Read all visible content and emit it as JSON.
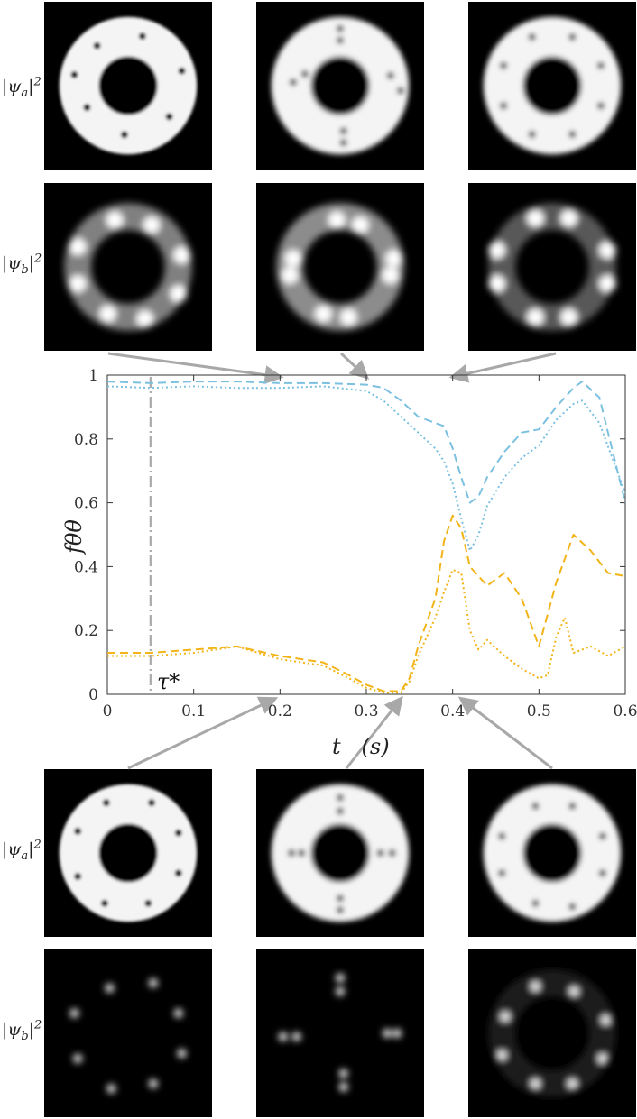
{
  "figure": {
    "row_labels": {
      "top_a": "|ψa|2",
      "top_b": "|ψb|2",
      "bottom_a": "|ψa|2",
      "bottom_b": "|ψb|2"
    },
    "panels": {
      "top_a": [
        {
          "vortices": [
            [
              0.315,
              0.262
            ],
            [
              0.585,
              0.205
            ],
            [
              0.82,
              0.412
            ],
            [
              0.745,
              0.685
            ],
            [
              0.478,
              0.792
            ],
            [
              0.255,
              0.63
            ],
            [
              0.18,
              0.435
            ]
          ],
          "blur": 0
        },
        {
          "vortices": [
            [
              0.5,
              0.16
            ],
            [
              0.5,
              0.23
            ],
            [
              0.29,
              0.43
            ],
            [
              0.22,
              0.48
            ],
            [
              0.52,
              0.77
            ],
            [
              0.52,
              0.84
            ],
            [
              0.8,
              0.44
            ],
            [
              0.86,
              0.53
            ]
          ],
          "blur": 1
        },
        {
          "vortices": [
            [
              0.38,
              0.21
            ],
            [
              0.62,
              0.21
            ],
            [
              0.79,
              0.38
            ],
            [
              0.79,
              0.62
            ],
            [
              0.62,
              0.79
            ],
            [
              0.38,
              0.79
            ],
            [
              0.21,
              0.62
            ],
            [
              0.21,
              0.38
            ]
          ],
          "blur": 1
        }
      ],
      "top_b": [
        {
          "blobs": [
            [
              0.42,
              0.22
            ],
            [
              0.64,
              0.25
            ],
            [
              0.82,
              0.43
            ],
            [
              0.8,
              0.66
            ],
            [
              0.6,
              0.81
            ],
            [
              0.38,
              0.78
            ],
            [
              0.2,
              0.6
            ],
            [
              0.2,
              0.38
            ]
          ],
          "ring": 0.5
        },
        {
          "blobs": [
            [
              0.48,
              0.22
            ],
            [
              0.62,
              0.25
            ],
            [
              0.82,
              0.45
            ],
            [
              0.8,
              0.55
            ],
            [
              0.55,
              0.8
            ],
            [
              0.4,
              0.78
            ],
            [
              0.2,
              0.55
            ],
            [
              0.22,
              0.45
            ]
          ],
          "ring": 0.55
        },
        {
          "blobs": [
            [
              0.4,
              0.21
            ],
            [
              0.6,
              0.21
            ],
            [
              0.83,
              0.4
            ],
            [
              0.83,
              0.6
            ],
            [
              0.6,
              0.8
            ],
            [
              0.4,
              0.8
            ],
            [
              0.17,
              0.6
            ],
            [
              0.17,
              0.4
            ]
          ],
          "ring": 0.35
        }
      ],
      "bottom_a": [
        {
          "vortices": [
            [
              0.37,
              0.2
            ],
            [
              0.64,
              0.2
            ],
            [
              0.8,
              0.38
            ],
            [
              0.8,
              0.62
            ],
            [
              0.62,
              0.8
            ],
            [
              0.36,
              0.8
            ],
            [
              0.2,
              0.64
            ],
            [
              0.2,
              0.37
            ]
          ],
          "blur": 0
        },
        {
          "vortices": [
            [
              0.5,
              0.17
            ],
            [
              0.5,
              0.25
            ],
            [
              0.81,
              0.5
            ],
            [
              0.74,
              0.5
            ],
            [
              0.5,
              0.77
            ],
            [
              0.5,
              0.84
            ],
            [
              0.21,
              0.5
            ],
            [
              0.27,
              0.5
            ]
          ],
          "blur": 1
        },
        {
          "vortices": [
            [
              0.4,
              0.22
            ],
            [
              0.62,
              0.22
            ],
            [
              0.8,
              0.4
            ],
            [
              0.8,
              0.62
            ],
            [
              0.62,
              0.82
            ],
            [
              0.4,
              0.8
            ],
            [
              0.2,
              0.62
            ],
            [
              0.2,
              0.4
            ]
          ],
          "blur": 1
        }
      ],
      "bottom_b": [
        {
          "blobs": [
            [
              0.39,
              0.23
            ],
            [
              0.65,
              0.2
            ],
            [
              0.8,
              0.38
            ],
            [
              0.82,
              0.62
            ],
            [
              0.65,
              0.8
            ],
            [
              0.4,
              0.83
            ],
            [
              0.2,
              0.65
            ],
            [
              0.18,
              0.38
            ]
          ],
          "ring": 0
        },
        {
          "blobs": [
            [
              0.5,
              0.17
            ],
            [
              0.5,
              0.25
            ],
            [
              0.78,
              0.5
            ],
            [
              0.84,
              0.5
            ],
            [
              0.52,
              0.74
            ],
            [
              0.52,
              0.82
            ],
            [
              0.16,
              0.52
            ],
            [
              0.24,
              0.52
            ]
          ],
          "ring": 0
        },
        {
          "blobs": [
            [
              0.4,
              0.22
            ],
            [
              0.63,
              0.25
            ],
            [
              0.82,
              0.42
            ],
            [
              0.8,
              0.65
            ],
            [
              0.62,
              0.8
            ],
            [
              0.4,
              0.8
            ],
            [
              0.2,
              0.63
            ],
            [
              0.22,
              0.4
            ]
          ],
          "ring": 0.12
        }
      ]
    }
  },
  "chart_data": {
    "type": "line",
    "xlabel": "t   (s)",
    "ylabel": "fθθ",
    "xlim": [
      0,
      0.6
    ],
    "ylim": [
      0,
      1
    ],
    "xticks": [
      "0",
      "0.1",
      "0.2",
      "0.3",
      "0.4",
      "0.5",
      "0.6"
    ],
    "yticks": [
      "0",
      "0.2",
      "0.4",
      "0.6",
      "0.8",
      "1"
    ],
    "annotations": [
      {
        "text": "τ*",
        "x": 0.05
      }
    ],
    "vline_x": 0.05,
    "arrows_top_x": [
      0.2,
      0.3,
      0.4
    ],
    "arrows_bottom_x": [
      0.2,
      0.34,
      0.41
    ],
    "colors": {
      "blue": "#7cc0e0",
      "yellow": "#f2b418",
      "vline": "#aaaaaa",
      "arrow": "#a8a8a8"
    },
    "series": [
      {
        "style": "dashed",
        "color": "blue",
        "x": [
          0,
          0.05,
          0.1,
          0.15,
          0.2,
          0.25,
          0.3,
          0.32,
          0.34,
          0.36,
          0.38,
          0.39,
          0.4,
          0.41,
          0.42,
          0.43,
          0.44,
          0.46,
          0.48,
          0.5,
          0.52,
          0.54,
          0.55,
          0.57,
          0.6
        ],
        "y": [
          0.98,
          0.975,
          0.98,
          0.98,
          0.975,
          0.975,
          0.97,
          0.96,
          0.92,
          0.87,
          0.85,
          0.84,
          0.77,
          0.68,
          0.6,
          0.62,
          0.68,
          0.76,
          0.82,
          0.83,
          0.9,
          0.96,
          0.98,
          0.93,
          0.6
        ]
      },
      {
        "style": "dotted",
        "color": "blue",
        "x": [
          0,
          0.05,
          0.1,
          0.15,
          0.2,
          0.25,
          0.3,
          0.32,
          0.34,
          0.36,
          0.38,
          0.39,
          0.4,
          0.41,
          0.42,
          0.43,
          0.44,
          0.46,
          0.48,
          0.5,
          0.52,
          0.54,
          0.55,
          0.57,
          0.6
        ],
        "y": [
          0.965,
          0.96,
          0.965,
          0.96,
          0.96,
          0.965,
          0.95,
          0.92,
          0.87,
          0.82,
          0.77,
          0.73,
          0.66,
          0.55,
          0.45,
          0.5,
          0.59,
          0.68,
          0.74,
          0.78,
          0.86,
          0.91,
          0.92,
          0.85,
          0.63
        ]
      },
      {
        "style": "dashed",
        "color": "yellow",
        "x": [
          0,
          0.05,
          0.1,
          0.15,
          0.2,
          0.25,
          0.28,
          0.3,
          0.32,
          0.34,
          0.35,
          0.36,
          0.38,
          0.39,
          0.4,
          0.41,
          0.42,
          0.44,
          0.46,
          0.48,
          0.5,
          0.52,
          0.54,
          0.56,
          0.58,
          0.6
        ],
        "y": [
          0.13,
          0.13,
          0.14,
          0.15,
          0.12,
          0.1,
          0.06,
          0.03,
          0.01,
          0.01,
          0.05,
          0.15,
          0.3,
          0.48,
          0.56,
          0.52,
          0.4,
          0.34,
          0.38,
          0.3,
          0.15,
          0.35,
          0.5,
          0.45,
          0.38,
          0.37
        ]
      },
      {
        "style": "dotted",
        "color": "yellow",
        "x": [
          0,
          0.05,
          0.1,
          0.15,
          0.2,
          0.25,
          0.28,
          0.3,
          0.32,
          0.34,
          0.35,
          0.36,
          0.38,
          0.39,
          0.4,
          0.41,
          0.42,
          0.43,
          0.44,
          0.46,
          0.48,
          0.5,
          0.51,
          0.52,
          0.53,
          0.54,
          0.56,
          0.58,
          0.6
        ],
        "y": [
          0.12,
          0.12,
          0.13,
          0.15,
          0.11,
          0.09,
          0.05,
          0.02,
          0.005,
          0.005,
          0.04,
          0.12,
          0.24,
          0.32,
          0.39,
          0.38,
          0.2,
          0.14,
          0.17,
          0.12,
          0.08,
          0.05,
          0.06,
          0.18,
          0.24,
          0.13,
          0.15,
          0.12,
          0.15
        ]
      }
    ]
  }
}
